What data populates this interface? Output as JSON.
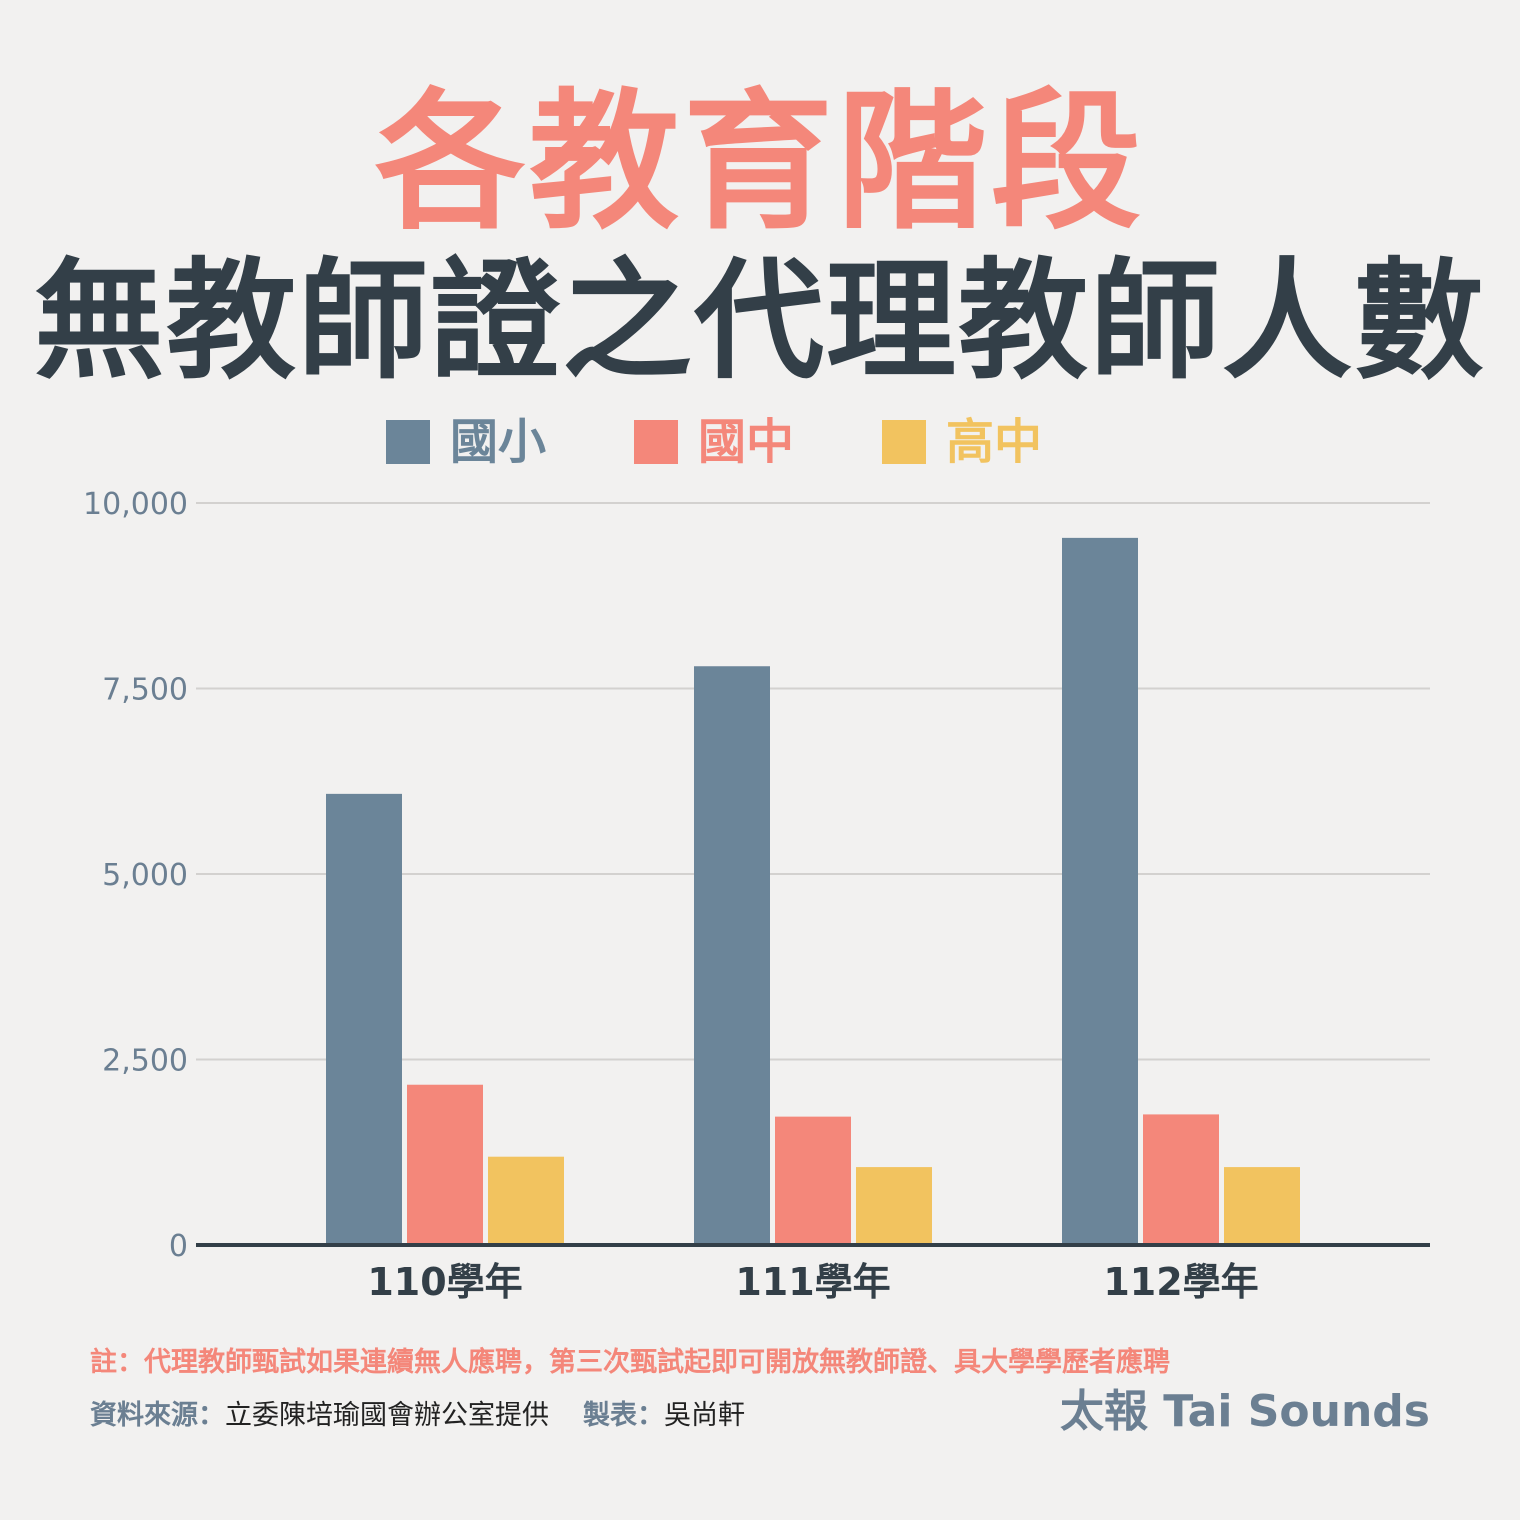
{
  "colors": {
    "title_accent": "#f4877a",
    "title_dark": "#333f48",
    "series_primary": "#6b8599",
    "series_junior": "#f4877a",
    "series_senior": "#f2c35f",
    "axis_text": "#6b7f92",
    "gridline": "#d3d1cf",
    "baseline": "#333f48",
    "background": "#f2f1f0",
    "brand": "#6b7f92"
  },
  "header": {
    "title_line1": "各教育階段",
    "title_line2": "無教師證之代理教師人數"
  },
  "footer": {
    "note": "註：代理教師甄試如果連續無人應聘，第三次甄試起即可開放無教師證、具大學學歷者應聘",
    "source_label": "資料來源：",
    "source_value": "立委陳培瑜國會辦公室提供",
    "maker_label": "製表：",
    "maker_value": "吳尚軒",
    "brand": "太報 Tai Sounds"
  },
  "chart_data": {
    "type": "bar",
    "categories": [
      "110學年",
      "111學年",
      "112學年"
    ],
    "series": [
      {
        "name": "國小",
        "values": [
          6080,
          7800,
          9530
        ]
      },
      {
        "name": "國中",
        "values": [
          2160,
          1730,
          1760
        ]
      },
      {
        "name": "高中",
        "values": [
          1190,
          1050,
          1050
        ]
      }
    ],
    "yticks": [
      "0",
      "2,500",
      "5,000",
      "7,500",
      "10,000"
    ],
    "ylim": [
      0,
      10000
    ],
    "grid": true,
    "legend": "top-center",
    "title": "各教育階段 無教師證之代理教師人數",
    "xlabel": "",
    "ylabel": ""
  }
}
